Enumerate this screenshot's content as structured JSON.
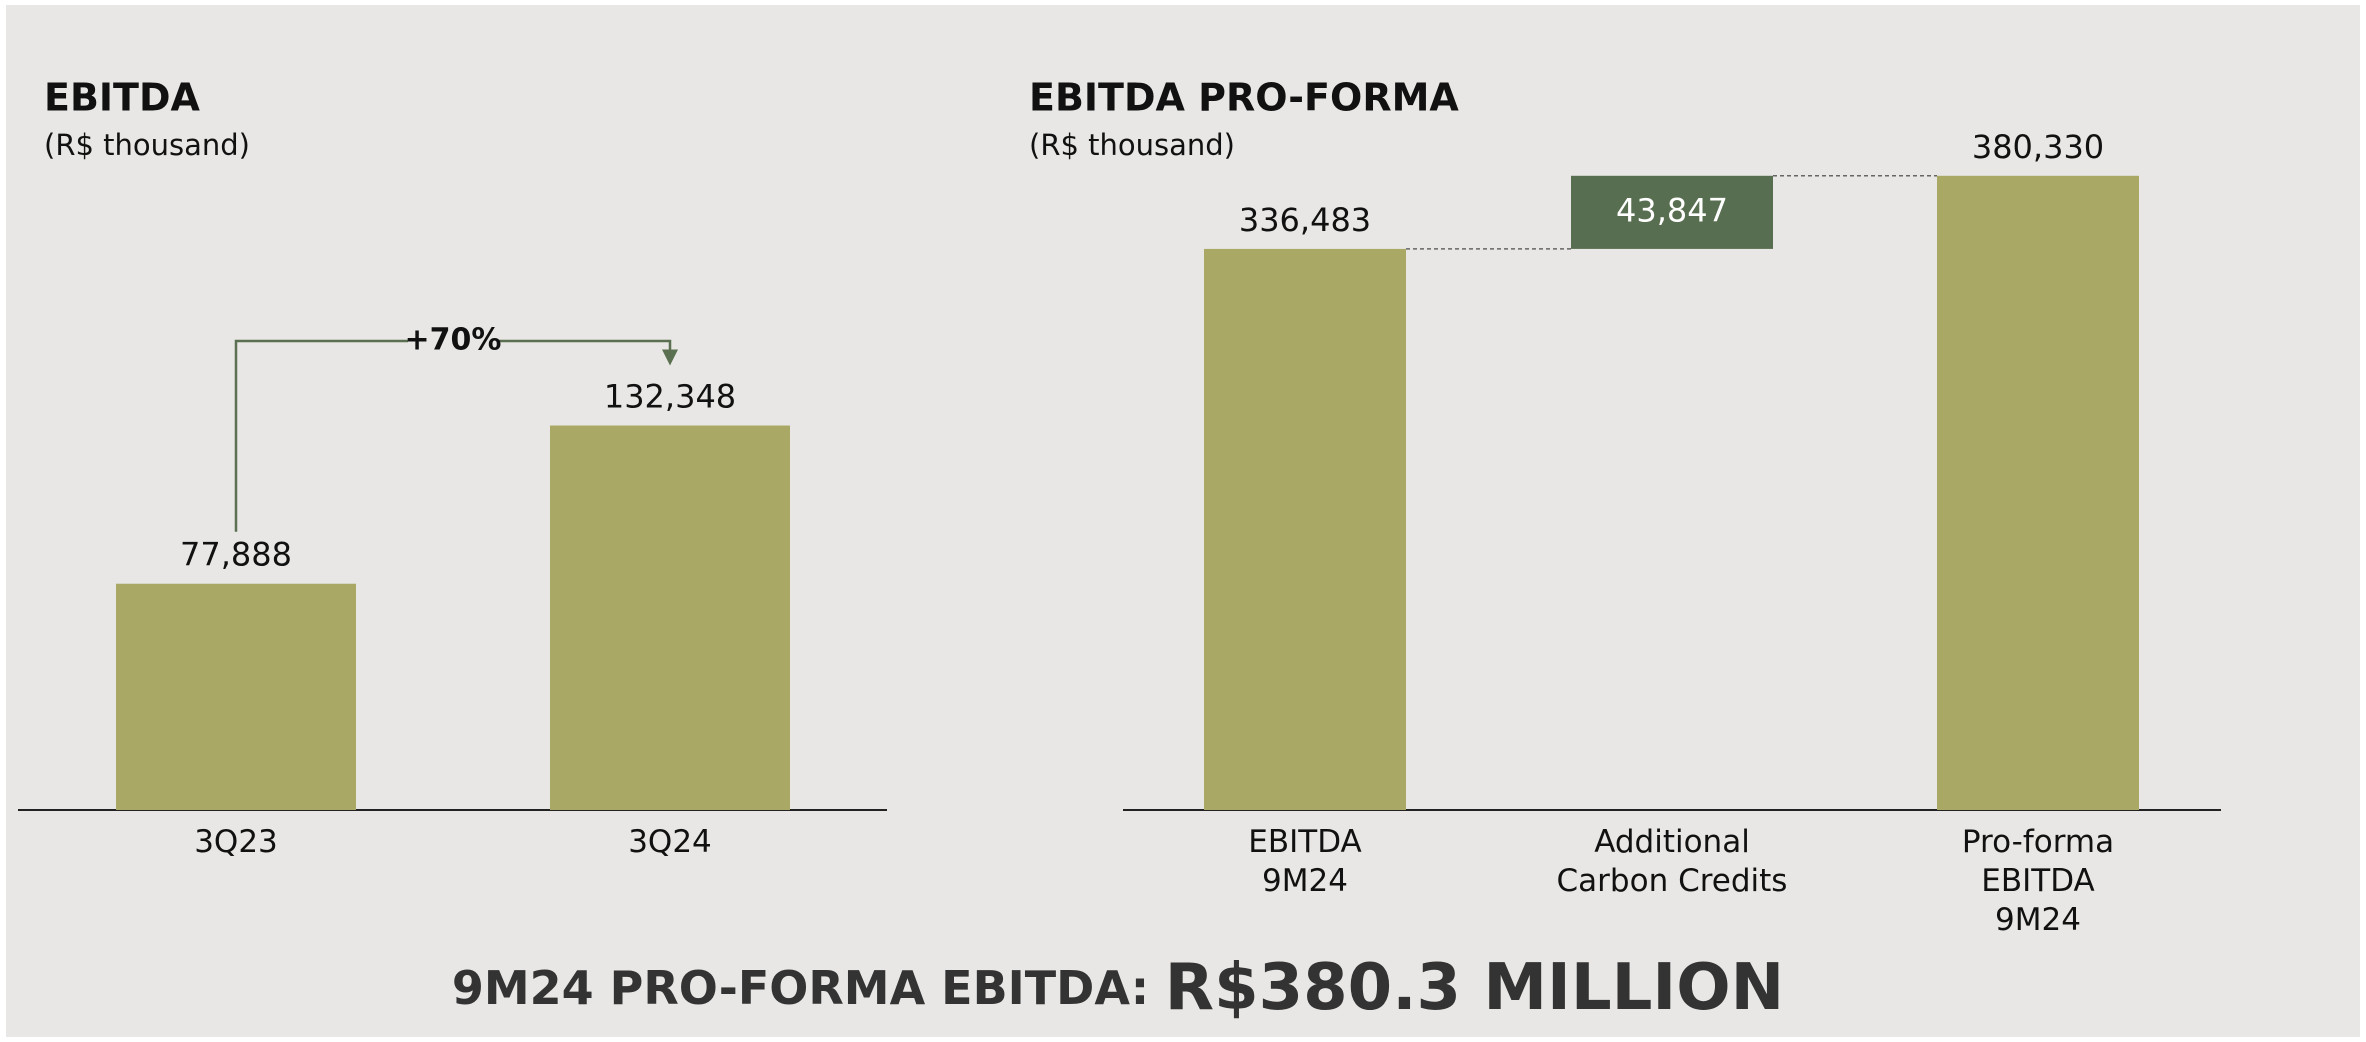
{
  "chart_data": [
    {
      "type": "bar",
      "title": "EBITDA",
      "subtitle": "(R$ thousand)",
      "categories": [
        "3Q23",
        "3Q24"
      ],
      "values": [
        77888,
        132348
      ],
      "value_labels": [
        "77,888",
        "132,348"
      ],
      "color": "#a9a965",
      "ylim": [
        0,
        200000
      ],
      "annotations": [
        {
          "text": "+70%",
          "color": "#5a7050"
        }
      ]
    },
    {
      "type": "waterfall",
      "title": "EBITDA PRO-FORMA",
      "subtitle": "(R$ thousand)",
      "categories": [
        "EBITDA\n9M24",
        "Additional\nCarbon Credits",
        "Pro-forma\nEBITDA\n9M24"
      ],
      "values": [
        336483,
        43847,
        380330
      ],
      "value_labels": [
        "336,483",
        "43,847",
        "380,330"
      ],
      "measure": [
        "absolute",
        "relative",
        "total"
      ],
      "colors": [
        "#a9a965",
        "#586e50",
        "#a9a965"
      ],
      "ylim": [
        0,
        400000
      ]
    }
  ],
  "footer": {
    "label": "9M24 PRO-FORMA EBITDA:",
    "value": "R$380.3 MILLION"
  }
}
